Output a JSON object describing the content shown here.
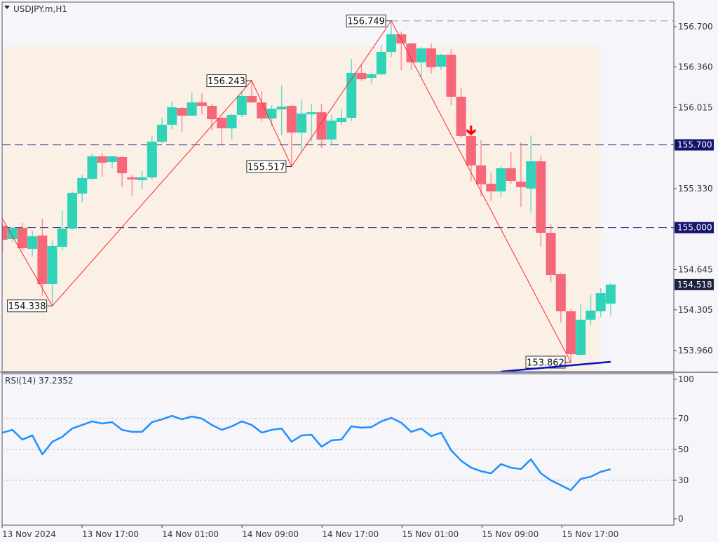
{
  "window": {
    "title": "USDJPY.m,H1",
    "menu_icon": "triangle-down-icon"
  },
  "indicator": {
    "label": "RSI(14) 37.2352"
  },
  "colors": {
    "background": "#f5f5fa",
    "zone": "#faf0e6",
    "bull": "#2fd3b8",
    "bear": "#f7677a",
    "zigzag": "#ff2a2a",
    "level_line": "#2b2b7a",
    "level_label_bg": "#14146e",
    "current_label_bg": "#1c2340",
    "rsi_line": "#1e90ff",
    "trendline": "#0a10c0",
    "sell_arrow": "#ff0000"
  },
  "chart_data": [
    {
      "type": "candlestick",
      "symbol": "USDJPY.m",
      "timeframe": "H1",
      "ylim": [
        153.78,
        156.93
      ],
      "price_ticks": [
        "156.700",
        "156.360",
        "156.015",
        "155.330",
        "154.645",
        "154.305",
        "153.960"
      ],
      "time_labels": [
        "13 Nov 2024",
        "13 Nov 17:00",
        "14 Nov 01:00",
        "14 Nov 09:00",
        "14 Nov 17:00",
        "15 Nov 01:00",
        "15 Nov 09:00",
        "15 Nov 17:00"
      ],
      "candles_ohlc": [
        [
          155.016,
          155.039,
          154.802,
          154.897
        ],
        [
          154.903,
          155.01,
          154.879,
          154.998
        ],
        [
          154.998,
          155.039,
          154.808,
          154.826
        ],
        [
          154.82,
          154.974,
          154.755,
          154.927
        ],
        [
          154.933,
          155.075,
          154.423,
          154.523
        ],
        [
          154.523,
          154.891,
          154.338,
          154.844
        ],
        [
          154.838,
          155.146,
          154.808,
          154.992
        ],
        [
          154.992,
          155.306,
          154.98,
          155.294
        ],
        [
          155.288,
          155.443,
          155.217,
          155.419
        ],
        [
          155.413,
          155.626,
          155.401,
          155.603
        ],
        [
          155.603,
          155.632,
          155.431,
          155.549
        ],
        [
          155.555,
          155.609,
          155.502,
          155.603
        ],
        [
          155.597,
          155.603,
          155.342,
          155.46
        ],
        [
          155.425,
          155.443,
          155.271,
          155.407
        ],
        [
          155.401,
          155.484,
          155.324,
          155.425
        ],
        [
          155.425,
          155.775,
          155.407,
          155.727
        ],
        [
          155.727,
          155.929,
          155.715,
          155.87
        ],
        [
          155.87,
          156.065,
          155.834,
          156.018
        ],
        [
          156.012,
          156.018,
          155.81,
          155.947
        ],
        [
          155.947,
          156.148,
          155.941,
          156.059
        ],
        [
          156.059,
          156.137,
          155.959,
          156.03
        ],
        [
          156.03,
          156.048,
          155.822,
          155.917
        ],
        [
          155.929,
          155.935,
          155.704,
          155.84
        ],
        [
          155.84,
          155.965,
          155.745,
          155.953
        ],
        [
          155.953,
          156.154,
          155.935,
          156.113
        ],
        [
          156.113,
          156.243,
          156.054,
          156.059
        ],
        [
          156.059,
          156.154,
          155.899,
          155.923
        ],
        [
          155.923,
          156.036,
          155.858,
          156.006
        ],
        [
          156.0,
          156.202,
          155.781,
          156.024
        ],
        [
          156.03,
          156.036,
          155.517,
          155.804
        ],
        [
          155.804,
          156.083,
          155.65,
          155.965
        ],
        [
          155.959,
          156.048,
          155.727,
          155.976
        ],
        [
          155.976,
          156.048,
          155.674,
          155.745
        ],
        [
          155.745,
          155.953,
          155.698,
          155.905
        ],
        [
          155.893,
          156.006,
          155.87,
          155.929
        ],
        [
          155.929,
          156.427,
          155.899,
          156.309
        ],
        [
          156.309,
          156.374,
          156.243,
          156.255
        ],
        [
          156.267,
          156.309,
          156.22,
          156.297
        ],
        [
          156.297,
          156.546,
          156.291,
          156.486
        ],
        [
          156.486,
          156.749,
          156.445,
          156.635
        ],
        [
          156.635,
          156.658,
          156.332,
          156.558
        ],
        [
          156.558,
          156.564,
          156.332,
          156.398
        ],
        [
          156.398,
          156.528,
          156.273,
          156.516
        ],
        [
          156.516,
          156.558,
          156.303,
          156.356
        ],
        [
          156.362,
          156.469,
          156.332,
          156.463
        ],
        [
          156.463,
          156.51,
          156.036,
          156.107
        ],
        [
          156.107,
          156.184,
          155.757,
          155.775
        ],
        [
          155.775,
          155.781,
          155.395,
          155.526
        ],
        [
          155.526,
          155.739,
          155.265,
          155.366
        ],
        [
          155.371,
          155.466,
          155.223,
          155.306
        ],
        [
          155.306,
          155.52,
          155.259,
          155.502
        ],
        [
          155.502,
          155.638,
          155.371,
          155.395
        ],
        [
          155.389,
          155.721,
          155.176,
          155.342
        ],
        [
          155.33,
          155.781,
          155.128,
          155.561
        ],
        [
          155.561,
          155.609,
          154.838,
          154.956
        ],
        [
          154.956,
          155.027,
          154.535,
          154.6
        ],
        [
          154.606,
          154.618,
          154.197,
          154.292
        ],
        [
          154.292,
          154.31,
          153.862,
          153.93
        ],
        [
          153.924,
          154.357,
          153.918,
          154.221
        ],
        [
          154.221,
          154.434,
          154.179,
          154.298
        ],
        [
          154.292,
          154.488,
          154.245,
          154.446
        ],
        [
          154.357,
          154.529,
          154.256,
          154.518
        ]
      ],
      "levels": [
        {
          "price": 155.7,
          "label": "155.700",
          "style": "dashed"
        },
        {
          "price": 155.0,
          "label": "155.000",
          "style": "dashed"
        }
      ],
      "high_line": {
        "price": 156.749
      },
      "current_price": "154.518",
      "zone": {
        "from_bar": 0,
        "to_bar": 60,
        "top": 156.534
      },
      "zigzag": [
        {
          "bar": 0,
          "price": 155.075,
          "label": ""
        },
        {
          "bar": 5,
          "price": 154.338,
          "label": "154.338"
        },
        {
          "bar": 25,
          "price": 156.243,
          "label": "156.243"
        },
        {
          "bar": 29,
          "price": 155.517,
          "label": "155.517"
        },
        {
          "bar": 39,
          "price": 156.749,
          "label": "156.749"
        },
        {
          "bar": 57,
          "price": 153.862,
          "label": "153.862"
        }
      ],
      "trendline": {
        "from": {
          "bar": 50,
          "price": 153.782
        },
        "to": {
          "bar": 61,
          "price": 153.865
        }
      },
      "sell_signal_bar": 47
    },
    {
      "type": "line",
      "name": "RSI(14)",
      "ylim": [
        0,
        100
      ],
      "y_ticks": [
        "100",
        "70",
        "50",
        "30",
        "0"
      ],
      "levels": [
        70,
        50,
        30
      ],
      "values": [
        60.9,
        62.7,
        56.4,
        59.1,
        46.8,
        55.0,
        58.2,
        63.6,
        65.9,
        68.2,
        66.8,
        67.7,
        62.7,
        61.4,
        61.4,
        67.7,
        69.5,
        71.8,
        69.5,
        71.4,
        70.0,
        65.9,
        62.7,
        65.0,
        68.2,
        65.9,
        60.9,
        62.7,
        63.6,
        55.0,
        59.1,
        59.5,
        51.8,
        55.9,
        56.4,
        65.0,
        64.1,
        64.5,
        68.2,
        70.5,
        67.3,
        61.4,
        63.6,
        58.6,
        60.9,
        49.5,
        42.7,
        38.2,
        35.9,
        34.5,
        40.5,
        38.2,
        37.3,
        43.6,
        34.5,
        30.0,
        26.8,
        23.6,
        30.9,
        32.3,
        35.5,
        37.2
      ]
    }
  ]
}
